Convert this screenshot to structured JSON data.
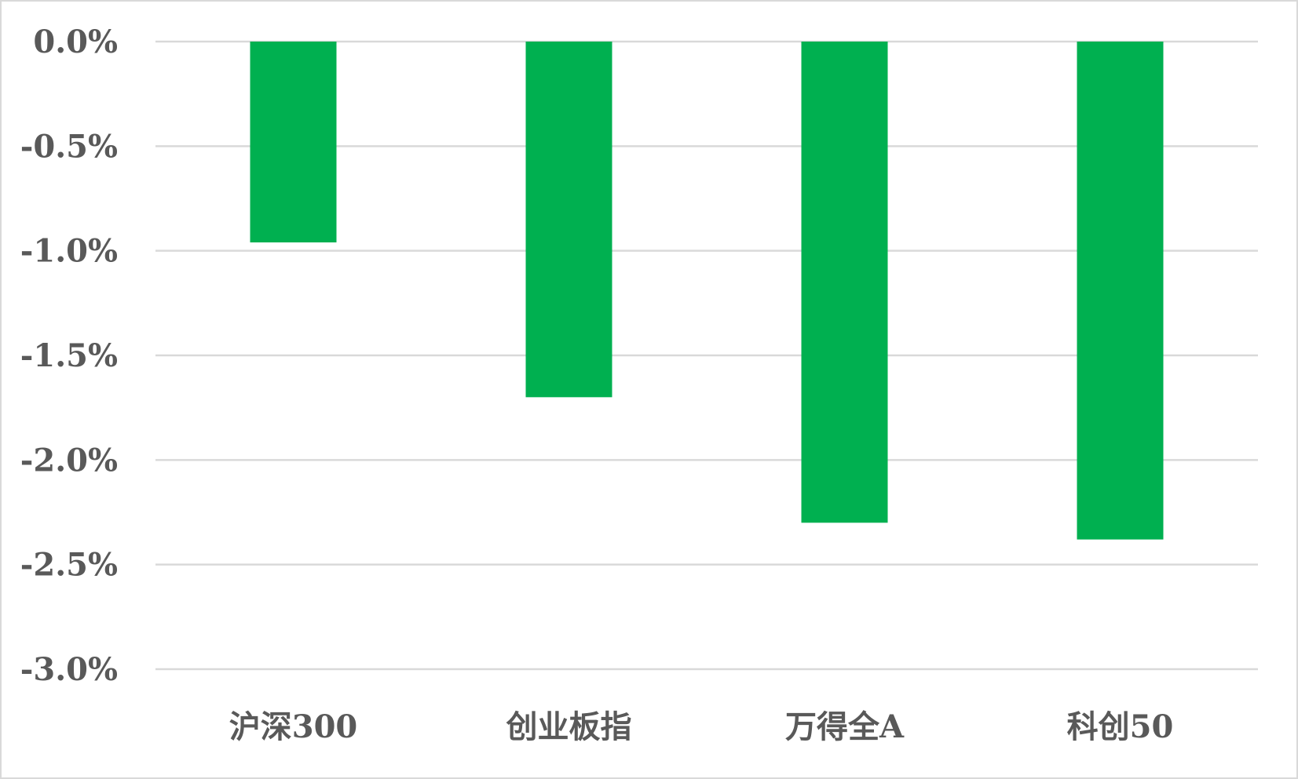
{
  "chart_data": {
    "type": "bar",
    "title": "",
    "xlabel": "",
    "ylabel": "",
    "categories": [
      "沪深300",
      "创业板指",
      "万得全A",
      "科创50"
    ],
    "values": [
      -0.96,
      -1.7,
      -2.3,
      -2.38
    ],
    "unit": "%",
    "ylim": [
      -3.0,
      0.0
    ],
    "yticks": [
      0.0,
      -0.5,
      -1.0,
      -1.5,
      -2.0,
      -2.5,
      -3.0
    ],
    "ytick_labels": [
      "0.0%",
      "-0.5%",
      "-1.0%",
      "-1.5%",
      "-2.0%",
      "-2.5%",
      "-3.0%"
    ],
    "bar_color": "#00b050",
    "grid": true,
    "legend": "none"
  }
}
